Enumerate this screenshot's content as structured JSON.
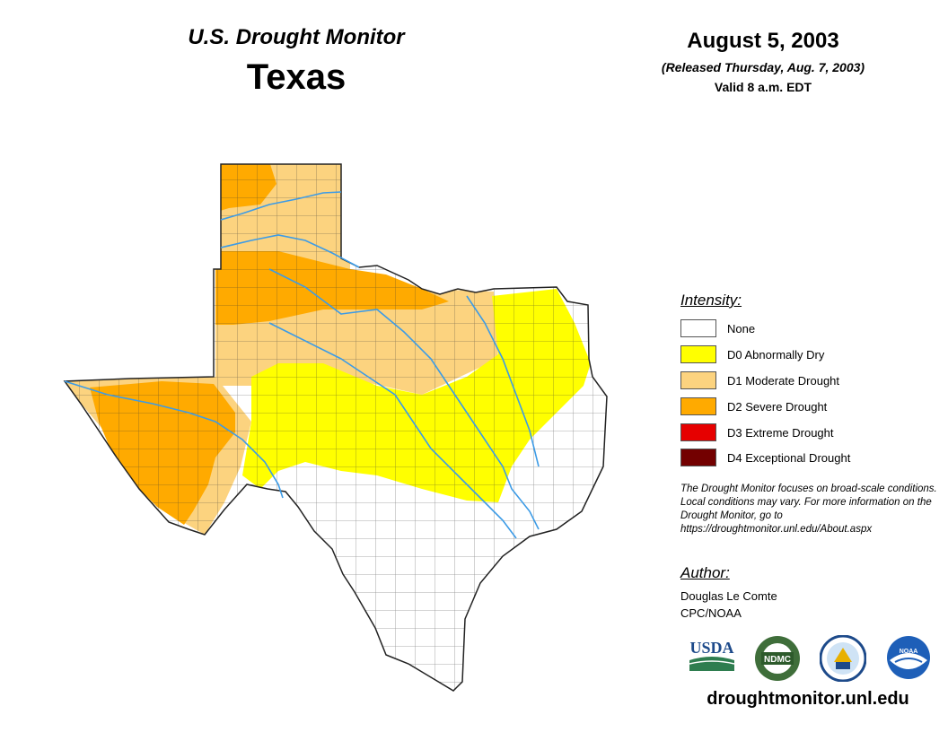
{
  "header": {
    "monitor_title": "U.S. Drought Monitor",
    "state": "Texas",
    "date": "August 5, 2003",
    "release_note": "(Released Thursday, Aug. 7, 2003)",
    "valid_time": "Valid 8 a.m. EDT"
  },
  "legend": {
    "title": "Intensity:",
    "items": [
      {
        "label": "None",
        "color": "#ffffff"
      },
      {
        "label": "D0 Abnormally Dry",
        "color": "#ffff00"
      },
      {
        "label": "D1 Moderate Drought",
        "color": "#fcd37f"
      },
      {
        "label": "D2 Severe Drought",
        "color": "#ffaa00"
      },
      {
        "label": "D3 Extreme Drought",
        "color": "#e60000"
      },
      {
        "label": "D4 Exceptional Drought",
        "color": "#730000"
      }
    ]
  },
  "disclaimer": "The Drought Monitor focuses on broad-scale conditions. Local conditions may vary. For more information on the Drought Monitor, go to https://droughtmonitor.unl.edu/About.aspx",
  "author": {
    "title": "Author:",
    "name": "Douglas Le Comte",
    "org": "CPC/NOAA"
  },
  "logos": [
    {
      "name": "usda-logo",
      "text": "USDA"
    },
    {
      "name": "ndmc-logo",
      "text": "NDMC"
    },
    {
      "name": "doc-logo",
      "text": ""
    },
    {
      "name": "noaa-logo",
      "text": "NOAA"
    }
  ],
  "footer_url": "droughtmonitor.unl.edu",
  "colors": {
    "river": "#3c9be6",
    "county_line": "#444444",
    "none": "#ffffff",
    "d0": "#ffff00",
    "d1": "#fcd37f",
    "d2": "#ffaa00"
  }
}
